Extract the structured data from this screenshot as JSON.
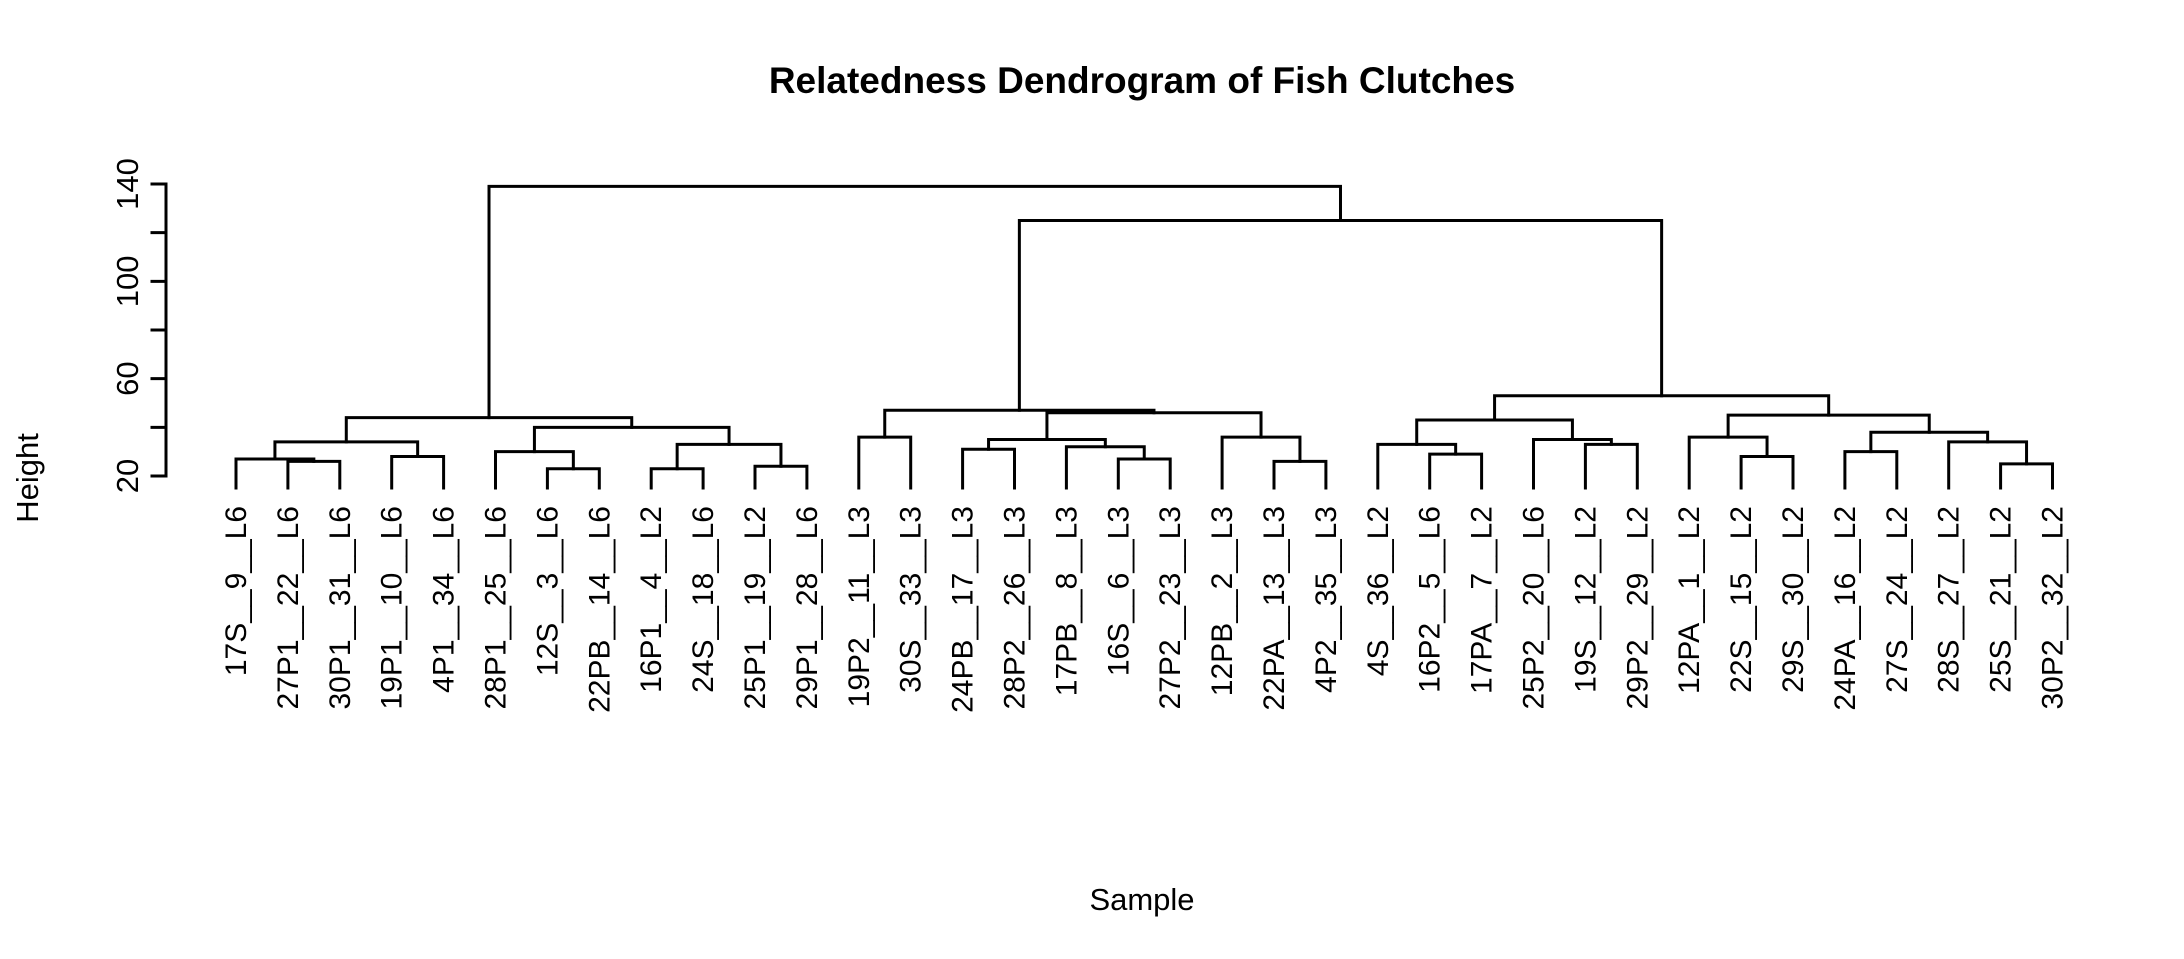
{
  "chart_data": {
    "type": "dendrogram",
    "title": "Relatedness Dendrogram of Fish Clutches",
    "xlabel": "Sample",
    "ylabel": "Height",
    "ylim": [
      20,
      140
    ],
    "yticks": [
      20,
      60,
      100,
      140
    ],
    "leaves": [
      "17S__9__L6",
      "27P1__22__L6",
      "30P1__31__L6",
      "19P1__10__L6",
      "4P1__34__L6",
      "28P1__25__L6",
      "12S__3__L6",
      "22PB__14__L6",
      "16P1__4__L2",
      "24S__18__L6",
      "25P1__19__L2",
      "29P1__28__L6",
      "19P2__11__L3",
      "30S__33__L3",
      "24PB__17__L3",
      "28P2__26__L3",
      "17PB__8__L3",
      "16S__6__L3",
      "27P2__23__L3",
      "12PB__2__L3",
      "22PA__13__L3",
      "4P2__35__L3",
      "4S__36__L2",
      "16P2__5__L6",
      "17PA__7__L2",
      "25P2__20__L6",
      "19S__12__L2",
      "29P2__29__L2",
      "12PA__1__L2",
      "22S__15__L2",
      "29S__30__L2",
      "24PA__16__L2",
      "27S__24__L2",
      "28S__27__L2",
      "25S__21__L2",
      "30P2__32__L2"
    ],
    "merges": [
      {
        "left": "L:1",
        "right": "L:2",
        "height": 26
      },
      {
        "left": "L:0",
        "right": "M:0",
        "height": 27
      },
      {
        "left": "L:3",
        "right": "L:4",
        "height": 28
      },
      {
        "left": "M:1",
        "right": "M:2",
        "height": 34
      },
      {
        "left": "L:6",
        "right": "L:7",
        "height": 23
      },
      {
        "left": "L:5",
        "right": "M:4",
        "height": 30
      },
      {
        "left": "L:8",
        "right": "L:9",
        "height": 23
      },
      {
        "left": "L:10",
        "right": "L:11",
        "height": 24
      },
      {
        "left": "M:6",
        "right": "M:7",
        "height": 33
      },
      {
        "left": "M:5",
        "right": "M:8",
        "height": 40
      },
      {
        "left": "M:3",
        "right": "M:9",
        "height": 44
      },
      {
        "left": "L:12",
        "right": "L:13",
        "height": 36
      },
      {
        "left": "L:17",
        "right": "L:18",
        "height": 27
      },
      {
        "left": "L:16",
        "right": "M:12",
        "height": 32
      },
      {
        "left": "L:14",
        "right": "L:15",
        "height": 31
      },
      {
        "left": "M:14",
        "right": "M:13",
        "height": 35
      },
      {
        "left": "L:20",
        "right": "L:21",
        "height": 26
      },
      {
        "left": "L:19",
        "right": "M:16",
        "height": 36
      },
      {
        "left": "M:15",
        "right": "M:17",
        "height": 46
      },
      {
        "left": "M:11",
        "right": "M:18",
        "height": 47
      },
      {
        "left": "L:23",
        "right": "L:24",
        "height": 29
      },
      {
        "left": "L:22",
        "right": "M:20",
        "height": 33
      },
      {
        "left": "L:26",
        "right": "L:27",
        "height": 33
      },
      {
        "left": "L:25",
        "right": "M:22",
        "height": 35
      },
      {
        "left": "M:21",
        "right": "M:23",
        "height": 43
      },
      {
        "left": "L:29",
        "right": "L:30",
        "height": 28
      },
      {
        "left": "L:28",
        "right": "M:25",
        "height": 36
      },
      {
        "left": "L:34",
        "right": "L:35",
        "height": 25
      },
      {
        "left": "L:33",
        "right": "M:27",
        "height": 34
      },
      {
        "left": "L:31",
        "right": "L:32",
        "height": 30
      },
      {
        "left": "M:29",
        "right": "M:28",
        "height": 38
      },
      {
        "left": "M:26",
        "right": "M:30",
        "height": 45
      },
      {
        "left": "M:24",
        "right": "M:31",
        "height": 53
      },
      {
        "left": "M:19",
        "right": "M:32",
        "height": 125
      },
      {
        "left": "M:10",
        "right": "M:33",
        "height": 139
      }
    ]
  }
}
